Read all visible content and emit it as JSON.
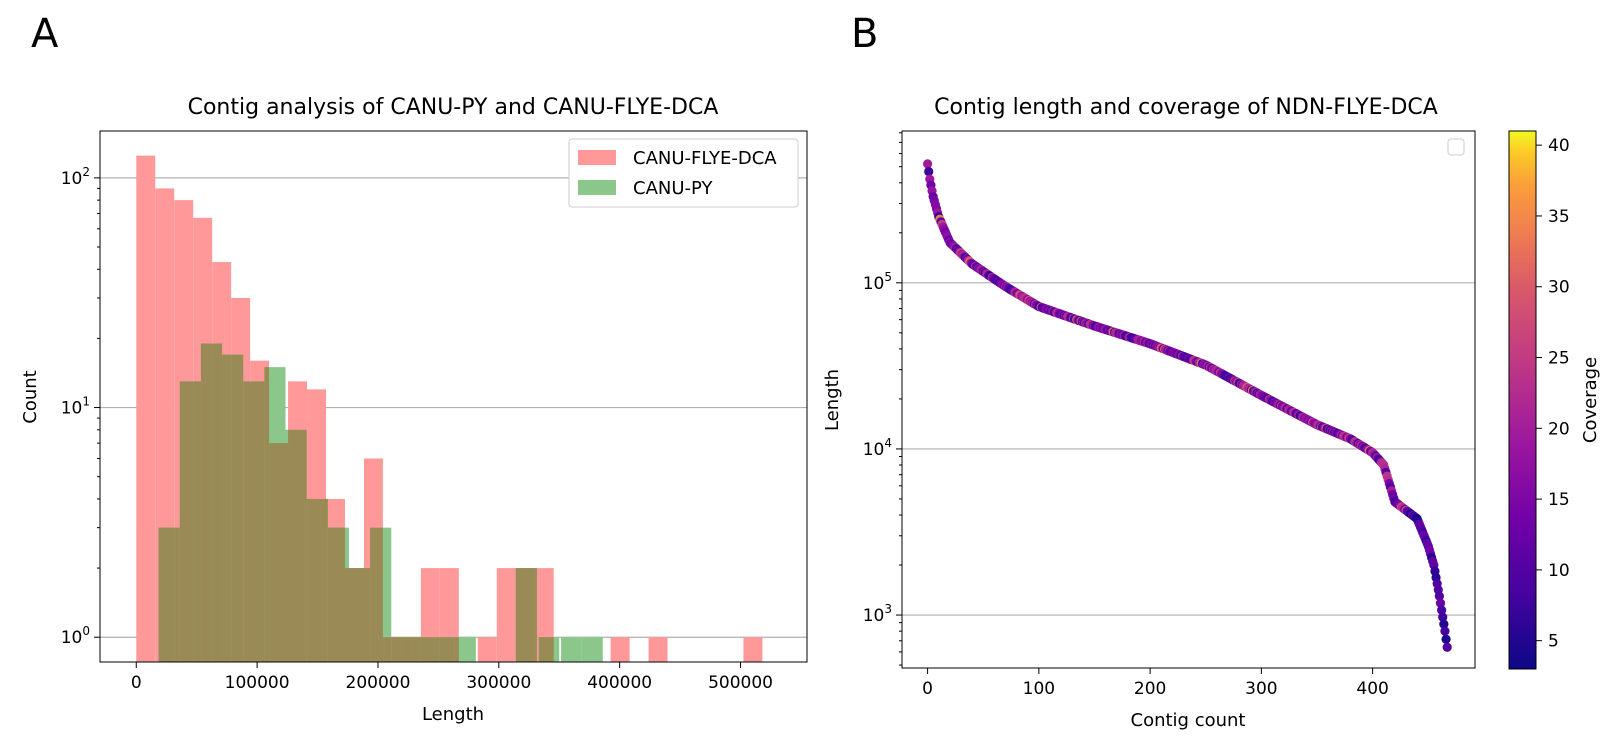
{
  "panels": {
    "a_letter": "A",
    "b_letter": "B"
  },
  "chart_data": [
    {
      "type": "bar",
      "title": "Contig analysis of CANU-PY and CANU-FLYE-DCA",
      "xlabel": "Length",
      "ylabel": "Count",
      "xlim": [
        -30000,
        555000
      ],
      "ylim": [
        0.78,
        160
      ],
      "yscale": "log",
      "grid": "y",
      "legend": "top-right",
      "xticks": [
        0,
        100000,
        200000,
        300000,
        400000,
        500000
      ],
      "xtick_labels": [
        "0",
        "100000",
        "200000",
        "300000",
        "400000",
        "500000"
      ],
      "yticks": [
        {
          "value": 1,
          "base": "10",
          "exp": "0"
        },
        {
          "value": 10,
          "base": "10",
          "exp": "1"
        },
        {
          "value": 100,
          "base": "10",
          "exp": "2"
        }
      ],
      "series": [
        {
          "name": "CANU-FLYE-DCA",
          "color": "#ff9999",
          "bins": [
            [
              0,
              15700,
              125
            ],
            [
              15700,
              31400,
              90
            ],
            [
              31400,
              47100,
              80
            ],
            [
              47100,
              62800,
              67
            ],
            [
              62800,
              78500,
              43
            ],
            [
              78500,
              94200,
              30
            ],
            [
              94200,
              109900,
              16
            ],
            [
              109900,
              125600,
              7
            ],
            [
              125600,
              141300,
              13
            ],
            [
              141300,
              157000,
              12
            ],
            [
              157000,
              172700,
              4
            ],
            [
              172700,
              188400,
              2
            ],
            [
              188400,
              204100,
              6
            ],
            [
              204100,
              219800,
              1
            ],
            [
              219800,
              235500,
              1
            ],
            [
              235500,
              251200,
              2
            ],
            [
              251200,
              266900,
              2
            ],
            [
              282600,
              298300,
              1
            ],
            [
              298300,
              314000,
              2
            ],
            [
              314000,
              329700,
              2
            ],
            [
              329700,
              345400,
              2
            ],
            [
              392500,
              408200,
              1
            ],
            [
              423900,
              439600,
              1
            ],
            [
              502400,
              518100,
              1
            ]
          ]
        },
        {
          "name": "CANU-PY",
          "color": "#8bc78b",
          "bins": [
            [
              18500,
              36000,
              3
            ],
            [
              36000,
              53500,
              13
            ],
            [
              53500,
              71000,
              19
            ],
            [
              71000,
              88500,
              17
            ],
            [
              88500,
              106000,
              13
            ],
            [
              106000,
              123500,
              15
            ],
            [
              123500,
              141000,
              8
            ],
            [
              141000,
              158500,
              4
            ],
            [
              158500,
              176000,
              3
            ],
            [
              176000,
              193500,
              2
            ],
            [
              193500,
              211000,
              3
            ],
            [
              211000,
              228500,
              1
            ],
            [
              228500,
              246000,
              1
            ],
            [
              246000,
              263500,
              1
            ],
            [
              263500,
              281000,
              1
            ],
            [
              314000,
              331500,
              2
            ],
            [
              333000,
              350000,
              1
            ],
            [
              351500,
              368500,
              1
            ],
            [
              368500,
              386000,
              1
            ]
          ]
        }
      ]
    },
    {
      "type": "scatter",
      "title": "Contig length and coverage of NDN-FLYE-DCA",
      "xlabel": "Contig count",
      "ylabel": "Length",
      "xlim": [
        -23,
        492
      ],
      "ylim": [
        480,
        820000
      ],
      "yscale": "log",
      "grid": "y",
      "legend": "top-right (empty)",
      "xticks": [
        0,
        100,
        200,
        300,
        400
      ],
      "xtick_labels": [
        "0",
        "100",
        "200",
        "300",
        "400"
      ],
      "yticks": [
        {
          "value": 1000,
          "base": "10",
          "exp": "3"
        },
        {
          "value": 10000,
          "base": "10",
          "exp": "4"
        },
        {
          "value": 100000,
          "base": "10",
          "exp": "5"
        }
      ],
      "colorbar": {
        "label": "Coverage",
        "cmap": "plasma",
        "range": [
          3,
          41
        ],
        "ticks": [
          5,
          10,
          15,
          20,
          25,
          30,
          35,
          40
        ]
      },
      "points": {
        "count": 468,
        "length_profile": [
          [
            0,
            520000
          ],
          [
            2,
            420000
          ],
          [
            5,
            330000
          ],
          [
            10,
            250000
          ],
          [
            20,
            175000
          ],
          [
            40,
            130000
          ],
          [
            70,
            95000
          ],
          [
            100,
            72000
          ],
          [
            150,
            55000
          ],
          [
            200,
            43000
          ],
          [
            250,
            32000
          ],
          [
            300,
            21000
          ],
          [
            350,
            14000
          ],
          [
            380,
            11500
          ],
          [
            400,
            9500
          ],
          [
            410,
            8000
          ],
          [
            420,
            4800
          ],
          [
            440,
            3800
          ],
          [
            450,
            2600
          ],
          [
            455,
            2000
          ],
          [
            460,
            1300
          ],
          [
            465,
            800
          ],
          [
            467,
            640
          ]
        ],
        "coverage_range": [
          3,
          41
        ]
      }
    }
  ]
}
